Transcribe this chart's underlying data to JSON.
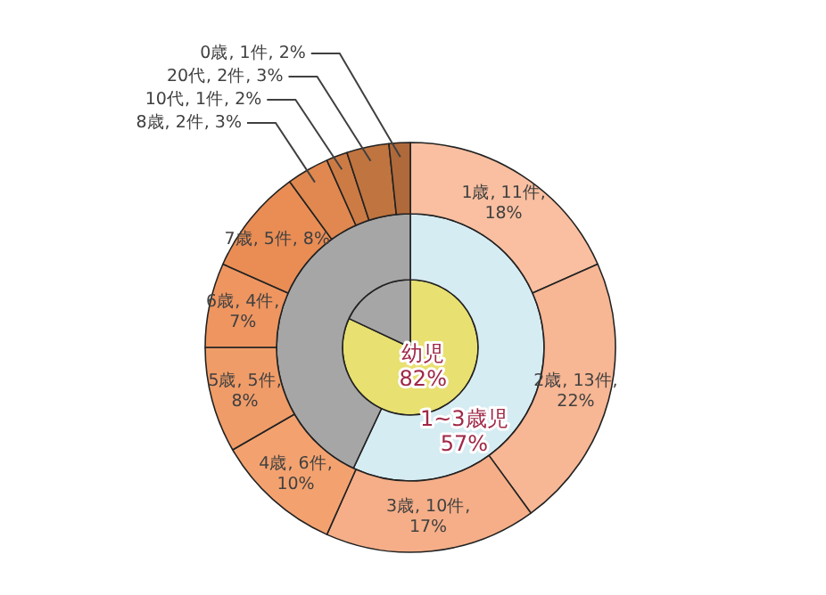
{
  "chart_data": [
    {
      "type": "donut",
      "categories": [
        "1歳",
        "2歳",
        "3歳",
        "4歳",
        "5歳",
        "6歳",
        "7歳",
        "8歳",
        "10代",
        "20代",
        "0歳"
      ],
      "values": [
        11,
        13,
        10,
        6,
        5,
        4,
        5,
        2,
        1,
        2,
        1
      ],
      "colors": [
        "#f9bfa0",
        "#f7b694",
        "#f5ae88",
        "#f3a26f",
        "#f09c68",
        "#ee9560",
        "#e98d55",
        "#e0884f",
        "#cd7b45",
        "#c0743f",
        "#b0693a"
      ],
      "value_labels": [
        "11件, 18%",
        "13件, 22%",
        "10件, 17%",
        "6件, 10%",
        "5件, 8%",
        "4件, 7%",
        "5件, 8%",
        "2件, 3%",
        "1件, 2%",
        "2件, 3%",
        "1件, 2%"
      ]
    },
    {
      "type": "donut",
      "categories": [
        "1~3歳児",
        null
      ],
      "values": [
        57,
        43
      ],
      "colors": [
        "#d6ecf3",
        "#a6a6a6"
      ],
      "value_labels": [
        "57%",
        null
      ]
    },
    {
      "type": "pie",
      "categories": [
        "幼児",
        null
      ],
      "values": [
        82,
        18
      ],
      "colors": [
        "#e8e070",
        "#a6a6a6"
      ],
      "value_labels": [
        "82%",
        null
      ]
    }
  ]
}
